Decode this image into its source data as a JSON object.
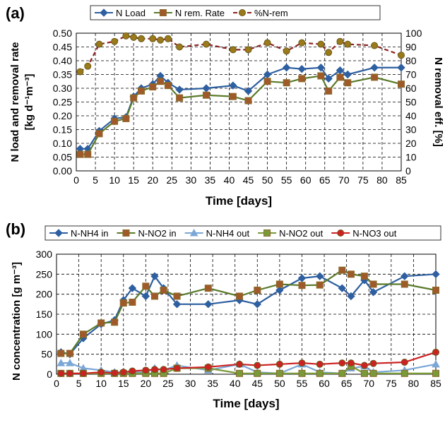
{
  "chart_data": [
    {
      "panel_label": "(a)",
      "type": "line",
      "xlabel": "Time [days]",
      "ylabel_lines": [
        "N  load and removal rate",
        "[kg d⁻¹m⁻³]"
      ],
      "y2label": "N removal eff. [%]",
      "xlim": [
        0,
        85
      ],
      "xticks": [
        0,
        5,
        10,
        15,
        20,
        25,
        30,
        35,
        40,
        45,
        50,
        55,
        60,
        65,
        70,
        75,
        80,
        85
      ],
      "ylim": [
        0,
        0.5
      ],
      "yticks": [
        "0.00",
        "0.05",
        "0.10",
        "0.15",
        "0.20",
        "0.25",
        "0.30",
        "0.35",
        "0.40",
        "0.45",
        "0.50"
      ],
      "y2lim": [
        0,
        100
      ],
      "y2ticks": [
        "0",
        "10",
        "20",
        "30",
        "40",
        "50",
        "60",
        "70",
        "80",
        "90",
        "100"
      ],
      "grid": true,
      "legend_position": "top",
      "series": [
        {
          "name": "N Load",
          "axis": "left",
          "color": "#2e5fa0",
          "marker": "diamond",
          "dash": "",
          "x": [
            1,
            3,
            6,
            10,
            13,
            15,
            17,
            20,
            22,
            24,
            27,
            34,
            41,
            45,
            50,
            55,
            59,
            64,
            66,
            69,
            71,
            78,
            85
          ],
          "y": [
            0.08,
            0.08,
            0.145,
            0.19,
            0.195,
            0.27,
            0.3,
            0.315,
            0.345,
            0.32,
            0.295,
            0.3,
            0.31,
            0.29,
            0.35,
            0.375,
            0.37,
            0.375,
            0.335,
            0.365,
            0.35,
            0.375,
            0.375
          ]
        },
        {
          "name": "N rem. Rate",
          "axis": "left",
          "color": "#5a7a2a",
          "marker": "square",
          "dash": "",
          "x": [
            1,
            3,
            6,
            10,
            13,
            15,
            17,
            20,
            22,
            24,
            27,
            34,
            41,
            45,
            50,
            55,
            59,
            64,
            66,
            69,
            71,
            78,
            85
          ],
          "y": [
            0.06,
            0.06,
            0.135,
            0.18,
            0.19,
            0.265,
            0.29,
            0.305,
            0.325,
            0.31,
            0.265,
            0.275,
            0.27,
            0.255,
            0.325,
            0.32,
            0.335,
            0.345,
            0.29,
            0.34,
            0.32,
            0.34,
            0.315
          ]
        },
        {
          "name": "%N-rem",
          "axis": "right",
          "color": "#8b2323",
          "marker": "circle",
          "dash": "6,4",
          "x": [
            1,
            3,
            6,
            10,
            13,
            15,
            17,
            20,
            22,
            24,
            27,
            34,
            41,
            45,
            50,
            55,
            59,
            64,
            66,
            69,
            71,
            78,
            85
          ],
          "y": [
            72,
            76,
            92,
            94,
            98,
            97,
            96,
            96,
            95,
            96,
            90,
            92,
            88,
            88,
            93,
            87,
            93,
            92,
            86,
            94,
            92,
            91,
            84
          ]
        }
      ]
    },
    {
      "panel_label": "(b)",
      "type": "line",
      "xlabel": "Time [days]",
      "ylabel": "N  concentration [g m⁻³]",
      "xlim": [
        0,
        85
      ],
      "xticks": [
        0,
        5,
        10,
        15,
        20,
        25,
        30,
        35,
        40,
        45,
        50,
        55,
        60,
        65,
        70,
        75,
        80,
        85
      ],
      "ylim": [
        0,
        300
      ],
      "yticks": [
        "0",
        "50",
        "100",
        "150",
        "200",
        "250",
        "300"
      ],
      "grid": true,
      "legend_position": "top",
      "series": [
        {
          "name": "N-NH4 in",
          "color": "#2e5fa0",
          "marker": "diamond",
          "x": [
            1,
            3,
            6,
            10,
            13,
            15,
            17,
            20,
            22,
            24,
            27,
            34,
            41,
            45,
            50,
            55,
            59,
            64,
            66,
            69,
            71,
            78,
            85
          ],
          "y": [
            55,
            50,
            90,
            125,
            135,
            185,
            215,
            195,
            245,
            215,
            175,
            175,
            185,
            175,
            210,
            240,
            245,
            215,
            195,
            235,
            205,
            245,
            250
          ]
        },
        {
          "name": "N-NO2 in",
          "color": "#5a7a2a",
          "marker": "square",
          "x": [
            1,
            3,
            6,
            10,
            13,
            15,
            17,
            20,
            22,
            24,
            27,
            34,
            41,
            45,
            50,
            55,
            59,
            64,
            66,
            69,
            71,
            78,
            85
          ],
          "y": [
            52,
            52,
            100,
            128,
            130,
            178,
            180,
            220,
            195,
            210,
            195,
            215,
            195,
            210,
            225,
            222,
            223,
            260,
            250,
            245,
            225,
            225,
            210
          ]
        },
        {
          "name": "N-NH4 out",
          "color": "#7aa7d6",
          "marker": "triangle",
          "x": [
            1,
            3,
            6,
            10,
            13,
            15,
            17,
            20,
            22,
            24,
            27,
            34,
            41,
            45,
            50,
            55,
            59,
            64,
            66,
            69,
            71,
            78,
            85
          ],
          "y": [
            28,
            28,
            15,
            10,
            5,
            5,
            5,
            5,
            15,
            10,
            22,
            10,
            25,
            5,
            2,
            25,
            5,
            2,
            15,
            20,
            5,
            10,
            25
          ]
        },
        {
          "name": "N-NO2 out",
          "color": "#7a9a3a",
          "marker": "square",
          "x": [
            1,
            3,
            6,
            10,
            13,
            15,
            17,
            20,
            22,
            24,
            27,
            34,
            41,
            45,
            50,
            55,
            59,
            64,
            66,
            69,
            71,
            78,
            85
          ],
          "y": [
            2,
            2,
            2,
            2,
            2,
            2,
            2,
            2,
            2,
            2,
            15,
            15,
            2,
            2,
            2,
            2,
            2,
            2,
            20,
            2,
            2,
            2,
            2
          ]
        },
        {
          "name": "N-NO3 out",
          "color": "#cc2222",
          "marker": "circle",
          "x": [
            1,
            3,
            6,
            10,
            13,
            15,
            17,
            20,
            22,
            24,
            27,
            34,
            41,
            45,
            50,
            55,
            59,
            64,
            66,
            69,
            71,
            78,
            85
          ],
          "y": [
            2,
            2,
            2,
            5,
            3,
            5,
            8,
            10,
            12,
            12,
            15,
            18,
            25,
            22,
            25,
            28,
            25,
            28,
            28,
            22,
            27,
            30,
            55
          ]
        }
      ]
    }
  ]
}
